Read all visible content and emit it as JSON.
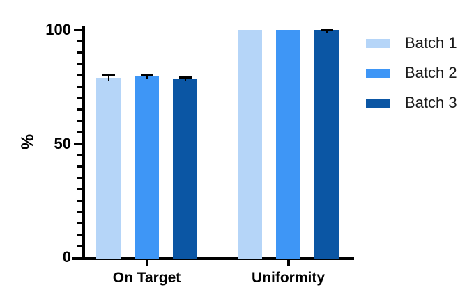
{
  "chart_data": {
    "type": "bar",
    "title": "",
    "categories": [
      "On Target",
      "Uniformity"
    ],
    "series": [
      {
        "name": "Batch 1",
        "color": "#B5D5F8",
        "values": [
          79.0,
          100
        ],
        "errors": [
          1.0,
          0
        ]
      },
      {
        "name": "Batch 2",
        "color": "#3E96F6",
        "values": [
          79.5,
          100
        ],
        "errors": [
          0.8,
          0
        ]
      },
      {
        "name": "Batch 3",
        "color": "#0B56A4",
        "values": [
          78.5,
          100
        ],
        "errors": [
          0.6,
          0.4
        ]
      }
    ],
    "xlabel": "",
    "ylabel": "%",
    "ylim": [
      0,
      100
    ],
    "yticks": [
      0,
      50,
      100
    ],
    "ytick_labels": [
      "0",
      "50",
      "100"
    ],
    "minor_tick_step": 5,
    "grid": "off",
    "legend_position": "right",
    "legend": [
      "Batch 1",
      "Batch 2",
      "Batch 3"
    ],
    "axis_color": "#000000",
    "text_color": "#000000"
  }
}
